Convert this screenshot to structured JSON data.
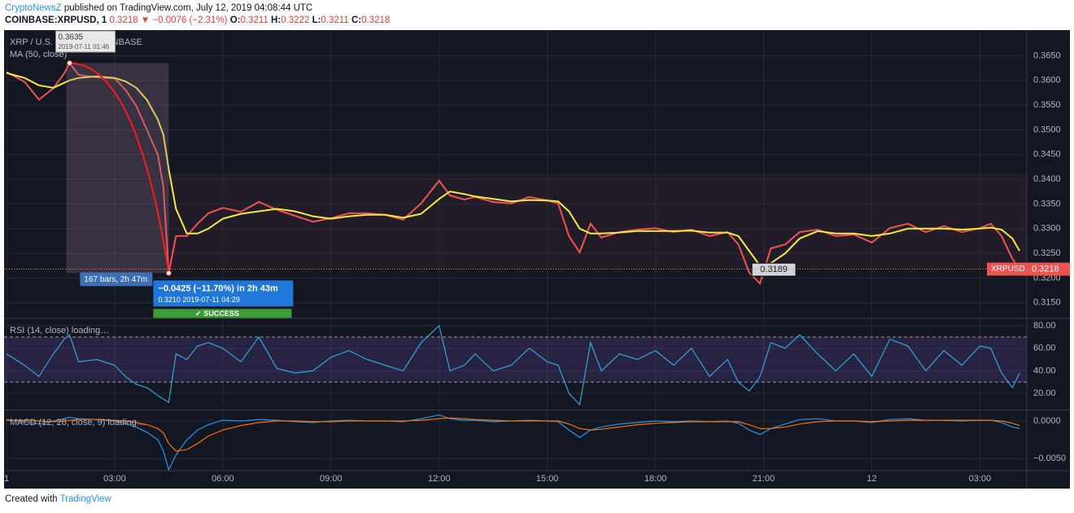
{
  "header": {
    "author": "CryptoNewsZ",
    "published": "published on TradingView.com, July 12, 2019 04:08:44 UTC",
    "symbol": "COINBASE:XRPUSD, 1",
    "last": "0.3218",
    "arrow": "▼",
    "change": "−0.0076 (−2.31%)",
    "o_label": "O:",
    "o": "0.3211",
    "h_label": "H:",
    "h": "0.3222",
    "l_label": "L:",
    "l": "0.3211",
    "c_label": "C:",
    "c": "0.3218"
  },
  "footer": {
    "created": "Created with",
    "brand": "TradingView"
  },
  "chart_data": [
    {
      "type": "line",
      "title": "XRP / U.S.",
      "source": "COINBASE",
      "x": [
        0,
        0.5,
        0.9,
        1.3,
        1.6,
        1.75,
        2,
        2.5,
        3,
        3.3,
        3.6,
        3.9,
        4.2,
        4.35,
        4.5,
        4.7,
        5,
        5.3,
        5.6,
        6,
        6.5,
        7,
        7.5,
        8,
        8.5,
        9,
        9.5,
        10,
        10.5,
        11,
        11.5,
        12,
        12.3,
        12.7,
        13,
        13.5,
        14,
        14.5,
        15,
        15.3,
        15.6,
        15.9,
        16.2,
        16.5,
        17,
        17.5,
        18,
        18.5,
        19,
        19.5,
        20,
        20.3,
        20.6,
        20.9,
        21.2,
        21.6,
        22,
        22.5,
        23,
        23.5,
        24,
        24.5,
        25,
        25.5,
        26,
        26.5,
        27,
        27.3,
        27.6,
        27.9,
        28.1
      ],
      "xlim": [
        0,
        28.3
      ],
      "xticks": [
        {
          "value": 0,
          "label": "1"
        },
        {
          "value": 3,
          "label": "03:00"
        },
        {
          "value": 6,
          "label": "06:00"
        },
        {
          "value": 9,
          "label": "09:00"
        },
        {
          "value": 12,
          "label": "12:00"
        },
        {
          "value": 15,
          "label": "15:00"
        },
        {
          "value": 18,
          "label": "18:00"
        },
        {
          "value": 21,
          "label": "21:00"
        },
        {
          "value": 24,
          "label": "12"
        },
        {
          "value": 27,
          "label": "03:00"
        }
      ],
      "ylim": [
        0.312,
        0.37
      ],
      "yticks": [
        {
          "value": 0.315,
          "label": "0.3150"
        },
        {
          "value": 0.32,
          "label": "0.3200"
        },
        {
          "value": 0.325,
          "label": "0.3250"
        },
        {
          "value": 0.33,
          "label": "0.3300"
        },
        {
          "value": 0.335,
          "label": "0.3350"
        },
        {
          "value": 0.34,
          "label": "0.3400"
        },
        {
          "value": 0.345,
          "label": "0.3450"
        },
        {
          "value": 0.35,
          "label": "0.3500"
        },
        {
          "value": 0.355,
          "label": "0.3550"
        },
        {
          "value": 0.36,
          "label": "0.3600"
        },
        {
          "value": 0.365,
          "label": "0.3650"
        }
      ],
      "grid": true,
      "series": [
        {
          "name": "XRPUSD",
          "color": "#f0534f",
          "values": [
            0.3617,
            0.3597,
            0.3561,
            0.3584,
            0.3614,
            0.3635,
            0.3611,
            0.3606,
            0.3604,
            0.3581,
            0.3548,
            0.3499,
            0.3449,
            0.3384,
            0.321,
            0.3285,
            0.3285,
            0.331,
            0.3331,
            0.3342,
            0.3334,
            0.3354,
            0.3338,
            0.3326,
            0.3314,
            0.3321,
            0.3331,
            0.3331,
            0.3328,
            0.3318,
            0.3351,
            0.3397,
            0.3367,
            0.3359,
            0.3364,
            0.3354,
            0.3351,
            0.3364,
            0.3357,
            0.3351,
            0.3285,
            0.3252,
            0.331,
            0.3282,
            0.3293,
            0.3298,
            0.3301,
            0.3293,
            0.3298,
            0.3285,
            0.3293,
            0.3268,
            0.3211,
            0.3189,
            0.326,
            0.3268,
            0.3293,
            0.3298,
            0.3285,
            0.3288,
            0.3272,
            0.3301,
            0.331,
            0.3293,
            0.3305,
            0.3293,
            0.3301,
            0.331,
            0.3285,
            0.3239,
            0.3218
          ]
        },
        {
          "name": "MA (50, close)",
          "color": "#f5e94a",
          "values": [
            0.3615,
            0.3605,
            0.359,
            0.3585,
            0.3595,
            0.36,
            0.3605,
            0.3608,
            0.3605,
            0.3598,
            0.3585,
            0.356,
            0.352,
            0.349,
            0.342,
            0.334,
            0.329,
            0.329,
            0.33,
            0.332,
            0.333,
            0.3335,
            0.334,
            0.3335,
            0.3325,
            0.332,
            0.3325,
            0.3328,
            0.3328,
            0.3322,
            0.333,
            0.336,
            0.3375,
            0.337,
            0.3365,
            0.336,
            0.3355,
            0.3358,
            0.3357,
            0.3355,
            0.3335,
            0.33,
            0.329,
            0.329,
            0.3292,
            0.3295,
            0.3295,
            0.3295,
            0.3296,
            0.3292,
            0.3292,
            0.3285,
            0.3255,
            0.3225,
            0.323,
            0.325,
            0.328,
            0.3295,
            0.329,
            0.329,
            0.3285,
            0.329,
            0.33,
            0.33,
            0.33,
            0.3298,
            0.33,
            0.3302,
            0.3298,
            0.328,
            0.3255
          ]
        }
      ],
      "annotations": {
        "peak_value": "0.3635",
        "peak_time": "2019-07-11 01:46",
        "bars": "167 bars, 2h 47m",
        "change": "−0.0425 (−11.70%) in 2h 43m",
        "low_value": "0.3210",
        "low_time": "2019-07-11  04:29",
        "status": "SUCCESS",
        "low2": "0.3189",
        "last": "0.3218"
      }
    },
    {
      "type": "line",
      "title": "RSI (14, close) loading…",
      "x": [
        0,
        0.5,
        0.9,
        1.3,
        1.6,
        1.75,
        2,
        2.5,
        3,
        3.3,
        3.6,
        3.9,
        4.2,
        4.35,
        4.5,
        4.7,
        5,
        5.3,
        5.6,
        6,
        6.5,
        7,
        7.5,
        8,
        8.5,
        9,
        9.5,
        10,
        10.5,
        11,
        11.5,
        12,
        12.3,
        12.7,
        13,
        13.5,
        14,
        14.5,
        15,
        15.3,
        15.6,
        15.9,
        16.2,
        16.5,
        17,
        17.5,
        18,
        18.5,
        19,
        19.5,
        20,
        20.3,
        20.6,
        20.9,
        21.2,
        21.6,
        22,
        22.5,
        23,
        23.5,
        24,
        24.5,
        25,
        25.5,
        26,
        26.5,
        27,
        27.3,
        27.6,
        27.9,
        28.1
      ],
      "xlim": [
        0,
        28.3
      ],
      "ylim": [
        6.3,
        85.8
      ],
      "yticks": [
        {
          "value": 20,
          "label": "20.00"
        },
        {
          "value": 40,
          "label": "40.00"
        },
        {
          "value": 60,
          "label": "60.00"
        },
        {
          "value": 80,
          "label": "80.00"
        }
      ],
      "band": [
        30,
        70
      ],
      "series": [
        {
          "color": "#2ea7d9",
          "values": [
            55,
            45,
            35,
            55,
            68,
            72,
            48,
            50,
            45,
            35,
            28,
            25,
            18,
            15,
            12,
            55,
            50,
            62,
            65,
            60,
            48,
            70,
            42,
            38,
            40,
            52,
            58,
            50,
            45,
            40,
            65,
            80,
            40,
            45,
            55,
            40,
            45,
            60,
            48,
            45,
            20,
            10,
            65,
            40,
            55,
            50,
            58,
            45,
            60,
            35,
            50,
            30,
            22,
            35,
            65,
            60,
            72,
            55,
            40,
            55,
            35,
            68,
            62,
            40,
            58,
            45,
            62,
            60,
            38,
            25,
            38
          ]
        }
      ]
    },
    {
      "type": "line",
      "title": "MACD (12, 26, close, 9) loading…",
      "x": [
        0,
        0.5,
        0.9,
        1.3,
        1.6,
        1.75,
        2,
        2.5,
        3,
        3.3,
        3.6,
        3.9,
        4.2,
        4.35,
        4.5,
        4.7,
        5,
        5.3,
        5.6,
        6,
        6.5,
        7,
        7.5,
        8,
        8.5,
        9,
        9.5,
        10,
        10.5,
        11,
        11.5,
        12,
        12.3,
        12.7,
        13,
        13.5,
        14,
        14.5,
        15,
        15.3,
        15.6,
        15.9,
        16.2,
        16.5,
        17,
        17.5,
        18,
        18.5,
        19,
        19.5,
        20,
        20.3,
        20.6,
        20.9,
        21.2,
        21.6,
        22,
        22.5,
        23,
        23.5,
        24,
        24.5,
        25,
        25.5,
        26,
        26.5,
        27,
        27.3,
        27.6,
        27.9,
        28.1
      ],
      "xlim": [
        0,
        28.3
      ],
      "ylim": [
        -0.0066,
        0.0013
      ],
      "yticks": [
        {
          "value": 0,
          "label": "0.0000"
        },
        {
          "value": -0.005,
          "label": "−0.0050"
        }
      ],
      "series": [
        {
          "color": "#2196f3",
          "values": [
            0.0002,
            -0.0001,
            -0.0004,
            0,
            0.0003,
            0.0005,
            0.0003,
            0.0002,
            0,
            -0.0003,
            -0.0008,
            -0.0015,
            -0.0025,
            -0.004,
            -0.0065,
            -0.0045,
            -0.0025,
            -0.0012,
            -0.0005,
            0.0001,
            0,
            0.0002,
            0.0001,
            -0.0001,
            -0.0002,
            0,
            0.0001,
            0,
            0,
            -0.0001,
            0.0003,
            0.0008,
            0.0003,
            0.0001,
            0.0001,
            -0.0001,
            0,
            0.0001,
            0,
            -0.0001,
            -0.0012,
            -0.0022,
            -0.0012,
            -0.0008,
            -0.0004,
            -0.0002,
            0,
            -0.0001,
            0,
            -0.0001,
            0,
            -0.0003,
            -0.0012,
            -0.0018,
            -0.001,
            -0.0004,
            0.0002,
            0.0003,
            0,
            0,
            -0.0002,
            0.0002,
            0.0003,
            0.0001,
            0.0001,
            0,
            0.0001,
            0.0001,
            -0.0002,
            -0.0008,
            -0.001
          ]
        },
        {
          "color": "#ff6d00",
          "values": [
            0.0001,
            0.0001,
            0,
            -0.0001,
            0,
            0.0001,
            0.0002,
            0.0002,
            0.0001,
            0,
            -0.0002,
            -0.0005,
            -0.001,
            -0.0016,
            -0.003,
            -0.004,
            -0.0038,
            -0.003,
            -0.002,
            -0.0012,
            -0.0006,
            -0.0002,
            0,
            0,
            -0.0001,
            -0.0001,
            0,
            0,
            0,
            0,
            0.0001,
            0.0003,
            0.0004,
            0.0003,
            0.0002,
            0.0001,
            0,
            0,
            0,
            0,
            -0.0004,
            -0.001,
            -0.0012,
            -0.0011,
            -0.0008,
            -0.0005,
            -0.0003,
            -0.0002,
            -0.0001,
            -0.0001,
            -0.0001,
            -0.0001,
            -0.0005,
            -0.001,
            -0.001,
            -0.0008,
            -0.0004,
            -0.0001,
            0,
            0,
            -0.0001,
            0,
            0.0001,
            0.0001,
            0.0001,
            0.0001,
            0.0001,
            0.0001,
            0,
            -0.0003,
            -0.0006
          ]
        }
      ]
    }
  ]
}
